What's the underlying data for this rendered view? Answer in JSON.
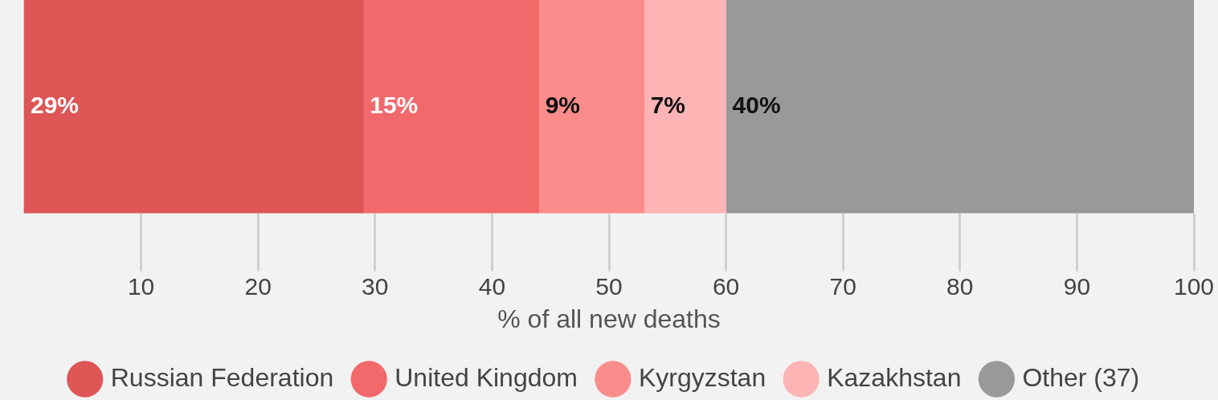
{
  "chart_data": {
    "type": "bar",
    "orientation": "horizontal",
    "stacked": true,
    "xlabel": "% of all new deaths",
    "categories": [
      null
    ],
    "series": [
      {
        "name": "Russian Federation",
        "color": "#dd5555",
        "values": [
          29
        ],
        "value_labels": [
          "29%"
        ]
      },
      {
        "name": "United Kingdom",
        "color": "#f2696c",
        "values": [
          15
        ],
        "value_labels": [
          "15%"
        ]
      },
      {
        "name": "Kyrgyzstan",
        "color": "#fb8c8c",
        "values": [
          9
        ],
        "value_labels": [
          "9%"
        ]
      },
      {
        "name": "Kazakhstan",
        "color": "#fdb4b4",
        "values": [
          7
        ],
        "value_labels": [
          "7%"
        ]
      },
      {
        "name": "Other (37)",
        "color": "#999999",
        "values": [
          40
        ],
        "value_labels": [
          "40%"
        ]
      }
    ],
    "xlim": [
      0,
      100
    ],
    "xticks": [
      10,
      20,
      30,
      40,
      50,
      60,
      70,
      80,
      90,
      100
    ],
    "legend": "bottom"
  }
}
